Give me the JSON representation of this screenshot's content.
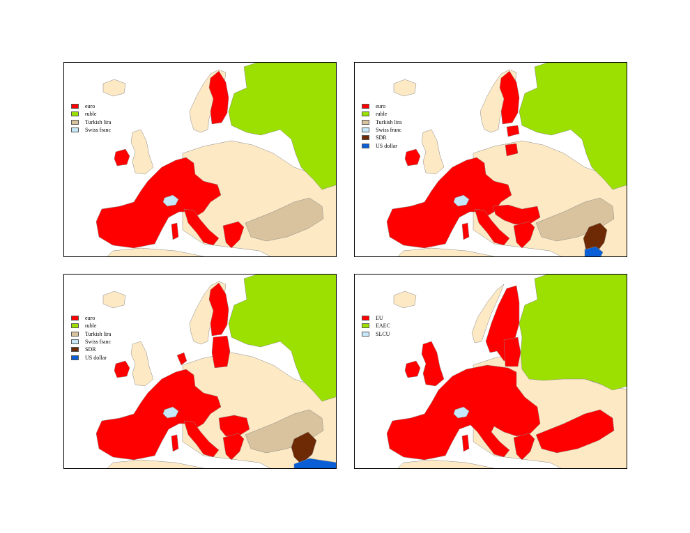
{
  "colors": {
    "euro": "#ff0000",
    "ruble": "#9be000",
    "turkish_lira": "#d8c39e",
    "swiss_franc": "#c6e8f8",
    "sdr": "#6e2a05",
    "us_dollar": "#0a5fd6",
    "other_land": "#fde9c4",
    "sea": "#ffffff",
    "border": "#888888"
  },
  "panels": [
    {
      "legend": [
        {
          "label": "euro",
          "color": "#ff0000"
        },
        {
          "label": "ruble",
          "color": "#9be000"
        },
        {
          "label": "Turkish lira",
          "color": "#d8c39e"
        },
        {
          "label": "Swiss franc",
          "color": "#c6e8f8"
        }
      ]
    },
    {
      "legend": [
        {
          "label": "euro",
          "color": "#ff0000"
        },
        {
          "label": "ruble",
          "color": "#9be000"
        },
        {
          "label": "Turkish lira",
          "color": "#d8c39e"
        },
        {
          "label": "Swiss franc",
          "color": "#c6e8f8"
        },
        {
          "label": "SDR",
          "color": "#6e2a05"
        },
        {
          "label": "US dollar",
          "color": "#0a5fd6"
        }
      ]
    },
    {
      "legend": [
        {
          "label": "euro",
          "color": "#ff0000"
        },
        {
          "label": "ruble",
          "color": "#9be000"
        },
        {
          "label": "Turkish lira",
          "color": "#d8c39e"
        },
        {
          "label": "Swiss franc",
          "color": "#c6e8f8"
        },
        {
          "label": "SDR",
          "color": "#6e2a05"
        },
        {
          "label": "US dollar",
          "color": "#0a5fd6"
        }
      ]
    },
    {
      "legend": [
        {
          "label": "EU",
          "color": "#ff0000"
        },
        {
          "label": "EAEC",
          "color": "#9be000"
        },
        {
          "label": "SLCU",
          "color": "#c6e8f8"
        }
      ]
    }
  ]
}
